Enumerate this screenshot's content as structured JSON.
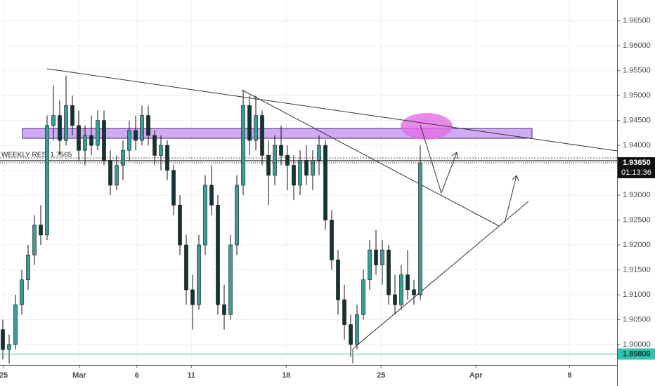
{
  "chart_data": {
    "type": "candlestick",
    "open": [
      1.903,
      1.899,
      1.9,
      1.908,
      1.913,
      1.918,
      1.924,
      1.922,
      1.944,
      1.946,
      1.941,
      1.948,
      1.944,
      1.939,
      1.942,
      1.94,
      1.945,
      1.937,
      1.932,
      1.936,
      1.939,
      1.943,
      1.941,
      1.946,
      1.942,
      1.938,
      1.94,
      1.935,
      1.928,
      1.92,
      1.911,
      1.908,
      1.92,
      1.932,
      1.928,
      1.908,
      1.906,
      1.92,
      1.932,
      1.948,
      1.941,
      1.946,
      1.938,
      1.934,
      1.94,
      1.938,
      1.936,
      1.932,
      1.937,
      1.934,
      1.937,
      1.94,
      1.925,
      1.917,
      1.909,
      1.904,
      1.9,
      1.906,
      1.913,
      1.919,
      1.916,
      1.919,
      1.91,
      1.908,
      1.914,
      1.911,
      1.91
    ],
    "high": [
      1.905,
      1.902,
      1.91,
      1.915,
      1.92,
      1.926,
      1.928,
      1.946,
      1.952,
      1.949,
      1.954,
      1.95,
      1.947,
      1.944,
      1.946,
      1.947,
      1.947,
      1.939,
      1.938,
      1.941,
      1.945,
      1.946,
      1.948,
      1.948,
      1.943,
      1.942,
      1.941,
      1.936,
      1.93,
      1.922,
      1.914,
      1.922,
      1.934,
      1.936,
      1.93,
      1.912,
      1.922,
      1.934,
      1.951,
      1.95,
      1.95,
      1.947,
      1.941,
      1.942,
      1.944,
      1.94,
      1.938,
      1.939,
      1.94,
      1.939,
      1.942,
      1.941,
      1.927,
      1.919,
      1.912,
      1.906,
      1.908,
      1.915,
      1.921,
      1.923,
      1.921,
      1.92,
      1.914,
      1.916,
      1.919,
      1.913,
      1.94
    ],
    "low": [
      1.897,
      1.8962,
      1.899,
      1.906,
      1.911,
      1.916,
      1.92,
      1.921,
      1.941,
      1.938,
      1.94,
      1.942,
      1.937,
      1.936,
      1.938,
      1.939,
      1.936,
      1.93,
      1.931,
      1.933,
      1.937,
      1.939,
      1.94,
      1.94,
      1.936,
      1.935,
      1.933,
      1.926,
      1.918,
      1.908,
      1.903,
      1.907,
      1.918,
      1.926,
      1.906,
      1.903,
      1.905,
      1.918,
      1.93,
      1.938,
      1.939,
      1.936,
      1.928,
      1.932,
      1.936,
      1.931,
      1.929,
      1.93,
      1.932,
      1.931,
      1.934,
      1.923,
      1.915,
      1.906,
      1.901,
      1.8975,
      1.899,
      1.905,
      1.911,
      1.914,
      1.912,
      1.908,
      1.906,
      1.907,
      1.909,
      1.908,
      1.909
    ],
    "close": [
      1.899,
      1.9,
      1.908,
      1.913,
      1.918,
      1.924,
      1.922,
      1.944,
      1.946,
      1.941,
      1.948,
      1.944,
      1.939,
      1.942,
      1.94,
      1.945,
      1.937,
      1.932,
      1.936,
      1.939,
      1.943,
      1.941,
      1.946,
      1.942,
      1.938,
      1.94,
      1.935,
      1.928,
      1.92,
      1.911,
      1.908,
      1.92,
      1.932,
      1.928,
      1.908,
      1.906,
      1.92,
      1.932,
      1.948,
      1.941,
      1.946,
      1.938,
      1.934,
      1.94,
      1.938,
      1.936,
      1.932,
      1.937,
      1.934,
      1.937,
      1.94,
      1.925,
      1.917,
      1.909,
      1.904,
      1.9,
      1.906,
      1.913,
      1.919,
      1.916,
      1.919,
      1.91,
      1.908,
      1.914,
      1.911,
      1.91,
      1.9365
    ],
    "up_color": "#3a9c95",
    "down_color": "#123434",
    "wick_color": "#111111",
    "xlim": [
      -0.444,
      97.11
    ],
    "xticks": [
      {
        "value": 0.11,
        "label": "25"
      },
      {
        "value": 12.1,
        "label": "Mar"
      },
      {
        "value": 21.2,
        "label": "6"
      },
      {
        "value": 29.8,
        "label": "11"
      },
      {
        "value": 44.8,
        "label": "18"
      },
      {
        "value": 59.8,
        "label": "25"
      },
      {
        "value": 74.8,
        "label": "Apr"
      },
      {
        "value": 89.6,
        "label": "8"
      }
    ],
    "ylim": [
      1.8959,
      1.9692
    ],
    "yticks": [
      {
        "value": 1.9,
        "label": "1.90000"
      },
      {
        "value": 1.905,
        "label": "1.90500"
      },
      {
        "value": 1.91,
        "label": "1.91000"
      },
      {
        "value": 1.915,
        "label": "1.91500"
      },
      {
        "value": 1.92,
        "label": "1.92000"
      },
      {
        "value": 1.925,
        "label": "1.92500"
      },
      {
        "value": 1.93,
        "label": "1.93000"
      },
      {
        "value": 1.935,
        "label": "1.93500"
      },
      {
        "value": 1.94,
        "label": "1.94000"
      },
      {
        "value": 1.945,
        "label": "1.94500"
      },
      {
        "value": 1.95,
        "label": "1.95000"
      },
      {
        "value": 1.955,
        "label": "1.95500"
      },
      {
        "value": 1.96,
        "label": "1.96000"
      },
      {
        "value": 1.965,
        "label": "1.96500"
      }
    ],
    "grid": true,
    "annotation": "WEEKLY RES: 1.7565",
    "last_price": {
      "value": 1.9365,
      "label": "1.93650"
    },
    "countdown": "01:13:36",
    "level": {
      "value": 1.89809,
      "label": "1.89809"
    }
  }
}
